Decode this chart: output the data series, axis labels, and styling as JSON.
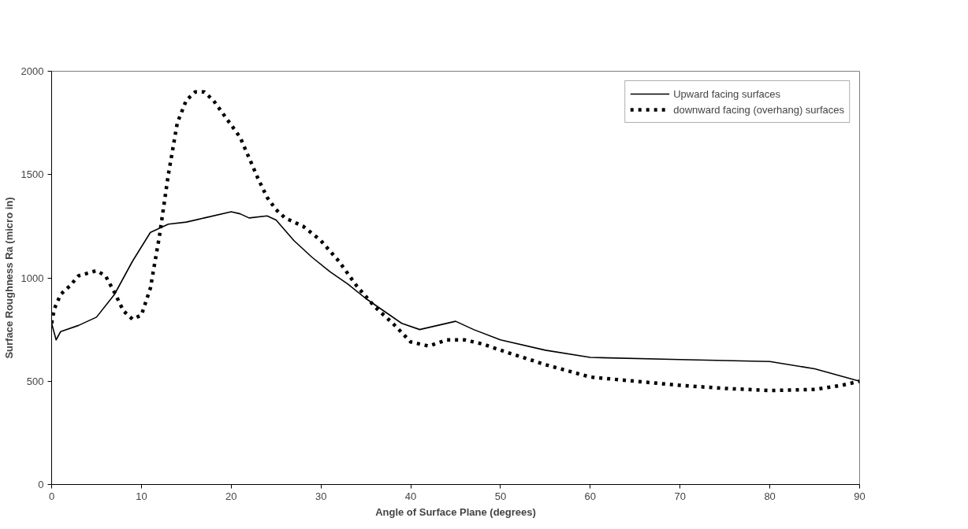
{
  "chart_data": {
    "type": "line",
    "xlabel": "Angle of Surface Plane (degrees)",
    "ylabel": "Surface Roughness Ra (micro in)",
    "xlim": [
      0,
      90
    ],
    "xticks": [
      0,
      10,
      20,
      30,
      40,
      50,
      60,
      70,
      80,
      90
    ],
    "ylim": [
      0,
      2000
    ],
    "yticks": [
      0,
      500,
      1000,
      1500,
      2000
    ],
    "grid": false,
    "legend": "top right",
    "marker": "none",
    "series": [
      {
        "name": "Upward facing surfaces",
        "color": "#000000",
        "line_style": "solid",
        "x": [
          0,
          0.5,
          1,
          3,
          5,
          7,
          9,
          11,
          13,
          15,
          17,
          20,
          21,
          22,
          24,
          25,
          27,
          29,
          31,
          33,
          35,
          37,
          39,
          41,
          43,
          45,
          47,
          50,
          55,
          60,
          70,
          80,
          85,
          90
        ],
        "values": [
          780,
          700,
          740,
          770,
          810,
          920,
          1080,
          1220,
          1260,
          1270,
          1290,
          1320,
          1310,
          1290,
          1300,
          1280,
          1180,
          1100,
          1030,
          970,
          900,
          840,
          780,
          750,
          770,
          790,
          750,
          700,
          650,
          615,
          605,
          595,
          560,
          500
        ]
      },
      {
        "name": "downward facing (overhang) surfaces",
        "color": "#000000",
        "line_style": "dashed",
        "x": [
          0,
          0.3,
          1,
          2,
          3,
          5,
          6,
          7,
          8,
          9,
          10,
          11,
          12,
          13,
          14,
          15,
          16,
          17,
          18,
          19,
          20,
          21,
          22,
          23,
          24,
          25,
          26,
          28,
          30,
          32,
          34,
          36,
          38,
          40,
          42,
          44,
          46,
          48,
          50,
          55,
          60,
          65,
          70,
          75,
          80,
          85,
          88,
          90
        ],
        "values": [
          780,
          850,
          920,
          960,
          1010,
          1035,
          1010,
          930,
          840,
          800,
          820,
          950,
          1200,
          1500,
          1750,
          1860,
          1900,
          1900,
          1860,
          1800,
          1740,
          1680,
          1580,
          1480,
          1390,
          1330,
          1290,
          1250,
          1180,
          1080,
          960,
          860,
          780,
          690,
          670,
          700,
          700,
          680,
          650,
          580,
          520,
          500,
          480,
          465,
          455,
          460,
          480,
          500
        ]
      }
    ]
  }
}
